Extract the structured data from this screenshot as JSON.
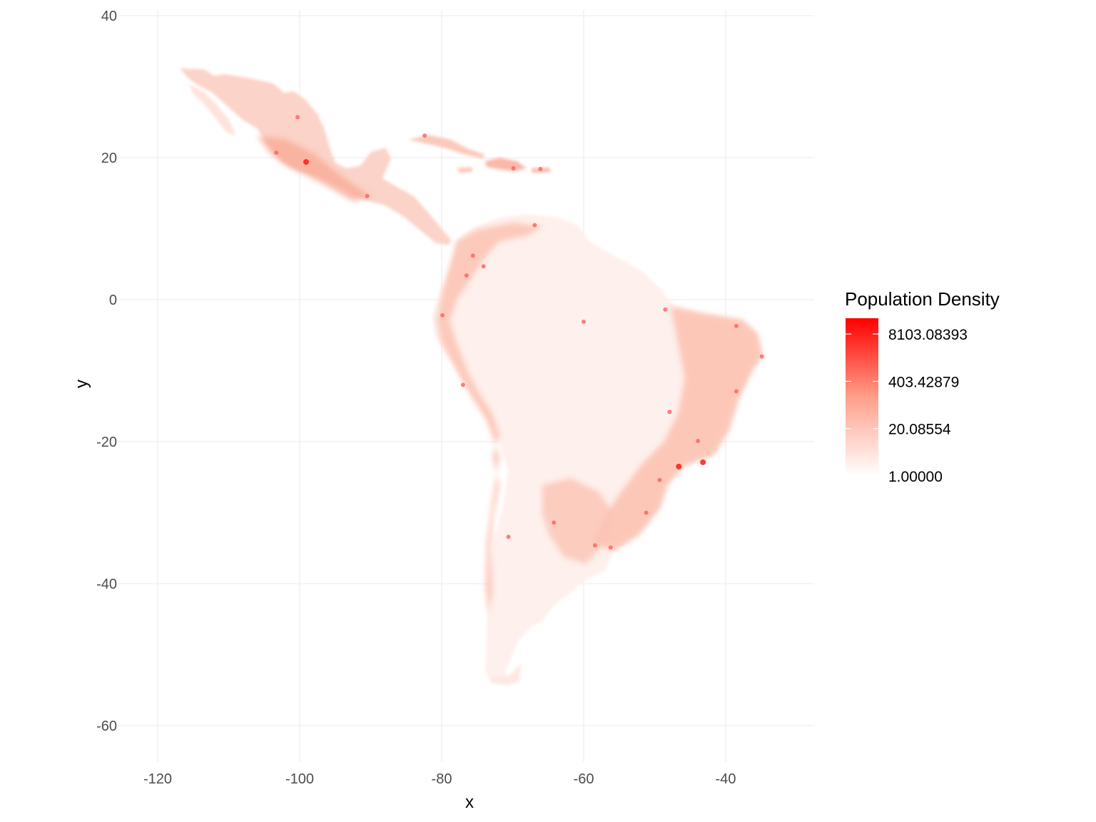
{
  "chart_data": {
    "type": "heatmap",
    "subject": "population density raster of Latin America",
    "xlabel": "x",
    "ylabel": "y",
    "xlim": [
      -126,
      -28
    ],
    "ylim": [
      -65,
      41
    ],
    "x_ticks": [
      -120,
      -100,
      -80,
      -60,
      -40
    ],
    "y_ticks": [
      40,
      20,
      0,
      -20,
      -40,
      -60
    ],
    "x_tick_labels": [
      "-120",
      "-100",
      "-80",
      "-60",
      "-40"
    ],
    "y_tick_labels": [
      "40",
      "20",
      "0",
      "-20",
      "-40",
      "-60"
    ],
    "grid": true,
    "legend": {
      "title": "Population Density",
      "position": "right",
      "scale": "log",
      "breaks": [
        8103.08393,
        403.42879,
        20.08554,
        1.0
      ],
      "labels": [
        "8103.08393",
        "403.42879",
        "20.08554",
        "1.00000"
      ],
      "min": 1.0,
      "max": 22026.47,
      "color_low": "#ffffff",
      "color_high": "#ff0000"
    },
    "hotspots": [
      {
        "x": -99.1,
        "y": 19.4,
        "density": 8103.08
      },
      {
        "x": -43.2,
        "y": -22.9,
        "density": 8103.08
      },
      {
        "x": -46.6,
        "y": -23.5,
        "density": 8103.08
      },
      {
        "x": -58.4,
        "y": -34.6,
        "density": 403.43
      },
      {
        "x": -74.1,
        "y": 4.7,
        "density": 403.43
      },
      {
        "x": -77.0,
        "y": -12.0,
        "density": 403.43
      },
      {
        "x": -70.6,
        "y": -33.4,
        "density": 403.43
      },
      {
        "x": -34.9,
        "y": -8.0,
        "density": 403.43
      },
      {
        "x": -38.5,
        "y": -12.9,
        "density": 403.43
      },
      {
        "x": -38.5,
        "y": -3.7,
        "density": 403.43
      },
      {
        "x": -66.9,
        "y": 10.5,
        "density": 403.43
      },
      {
        "x": -79.9,
        "y": -2.2,
        "density": 403.43
      },
      {
        "x": -103.3,
        "y": 20.7,
        "density": 403.43
      },
      {
        "x": -100.3,
        "y": 25.7,
        "density": 403.43
      },
      {
        "x": -90.5,
        "y": 14.6,
        "density": 403.43
      },
      {
        "x": -82.4,
        "y": 23.1,
        "density": 403.43
      },
      {
        "x": -69.9,
        "y": 18.5,
        "density": 403.43
      },
      {
        "x": -66.1,
        "y": 18.4,
        "density": 403.43
      },
      {
        "x": -75.6,
        "y": 6.2,
        "density": 403.43
      },
      {
        "x": -76.5,
        "y": 3.4,
        "density": 403.43
      },
      {
        "x": -47.9,
        "y": -15.8,
        "density": 403.43
      },
      {
        "x": -43.9,
        "y": -19.9,
        "density": 403.43
      },
      {
        "x": -49.3,
        "y": -25.4,
        "density": 403.43
      },
      {
        "x": -51.2,
        "y": -30.0,
        "density": 403.43
      },
      {
        "x": -56.2,
        "y": -34.9,
        "density": 403.43
      },
      {
        "x": -64.2,
        "y": -31.4,
        "density": 403.43
      },
      {
        "x": -60.0,
        "y": -3.1,
        "density": 403.43
      },
      {
        "x": -48.5,
        "y": -1.4,
        "density": 403.43
      }
    ]
  }
}
